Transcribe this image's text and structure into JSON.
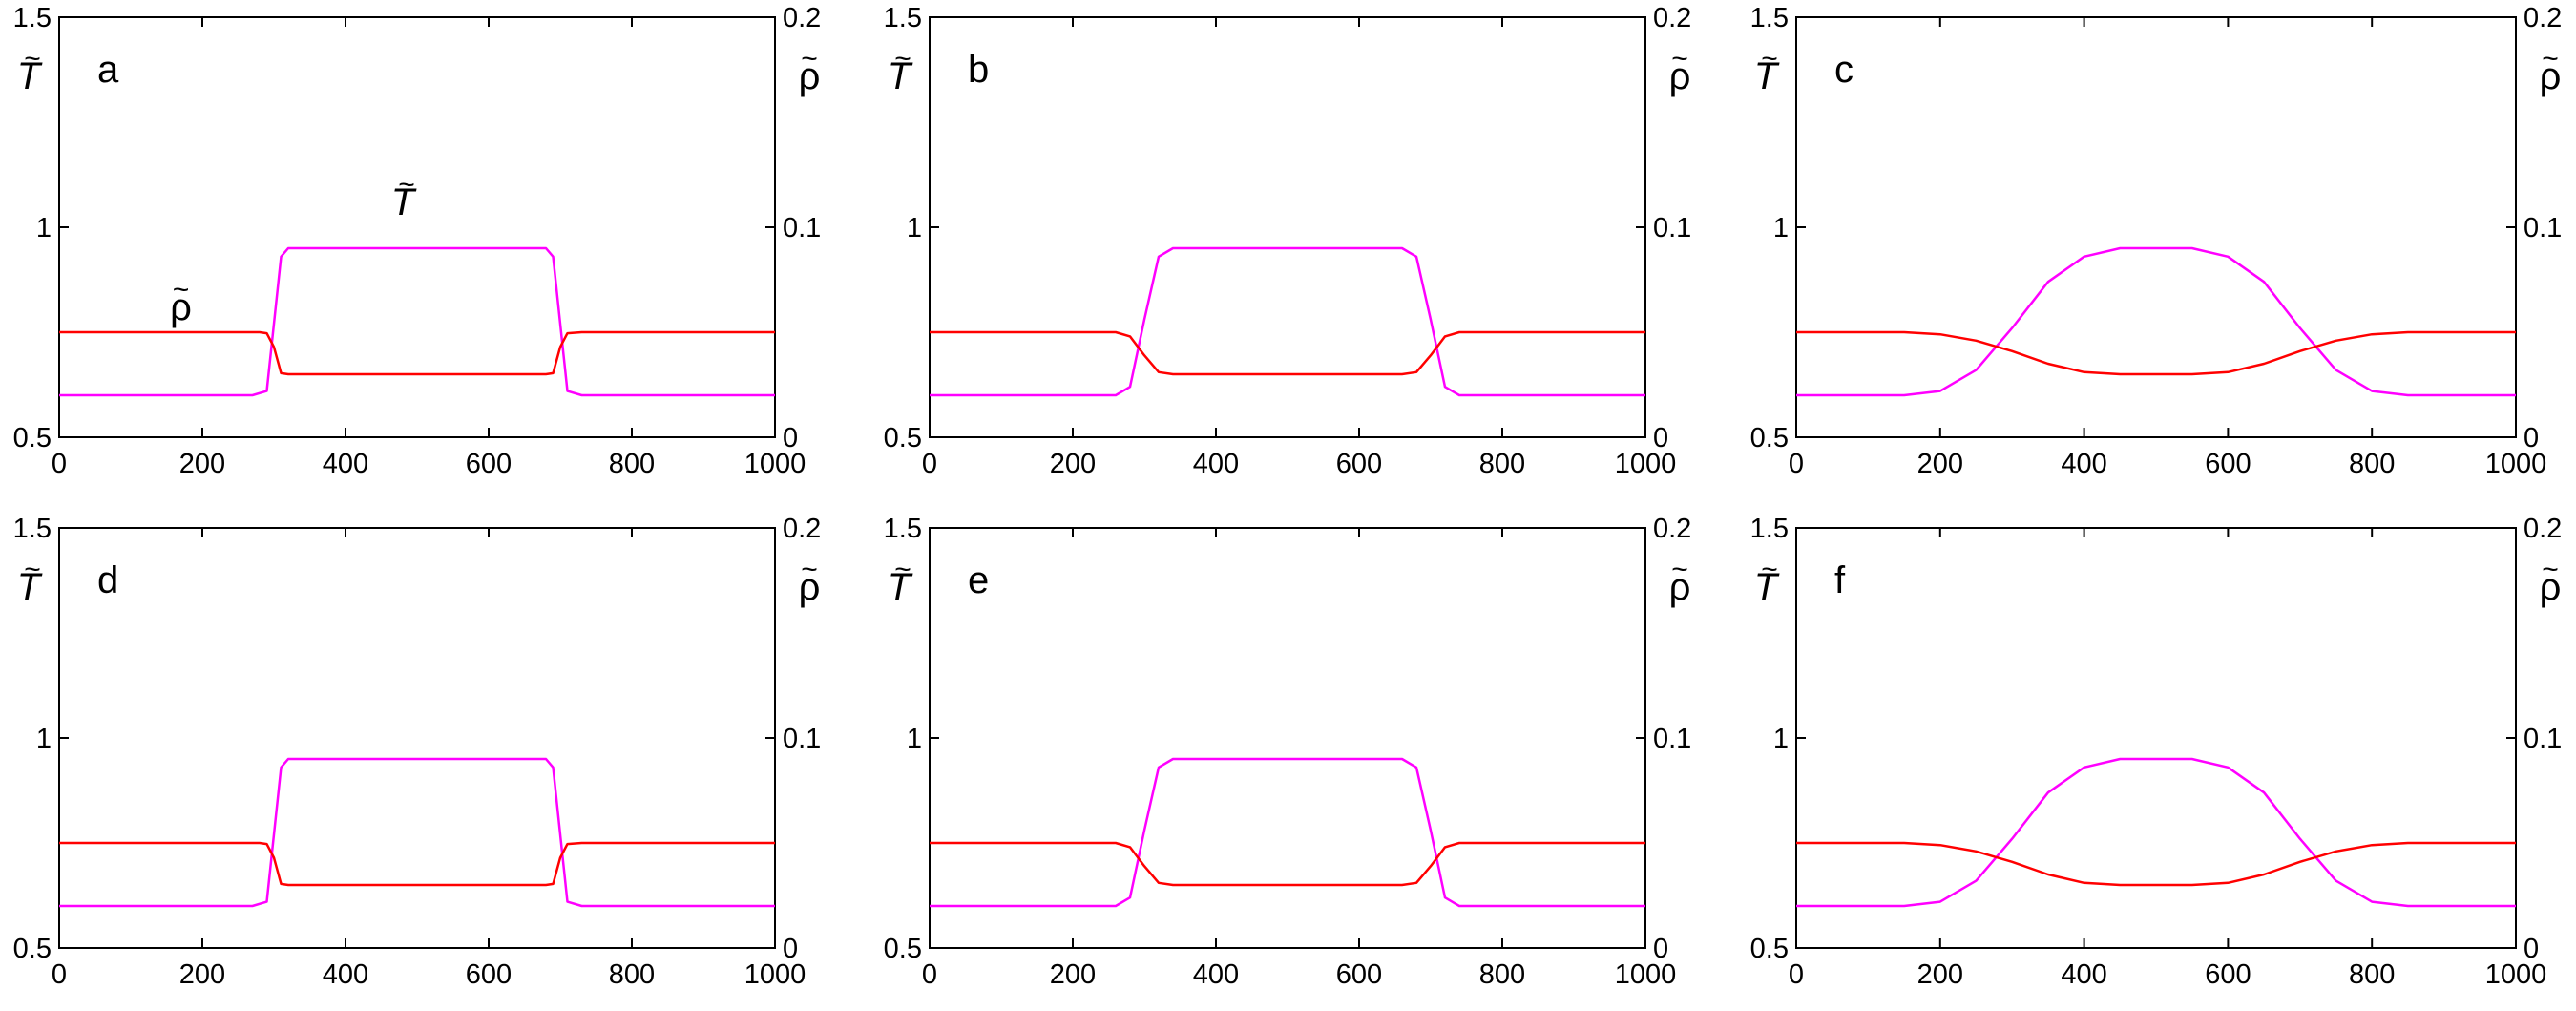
{
  "figure": {
    "colors": {
      "T": "#ff00ff",
      "rho": "#ff0000",
      "axes": "#000000"
    },
    "axes_labels": {
      "left_symbol": "T",
      "right_symbol": "ρ",
      "tilde": "~"
    },
    "curve_labels": {
      "T": "T",
      "rho": "ρ"
    }
  },
  "chart_data": [
    {
      "type": "line",
      "panel": "a",
      "xlim": [
        0,
        1000
      ],
      "ylim_left": [
        0.5,
        1.5
      ],
      "ylim_right": [
        0,
        0.2
      ],
      "x_ticks": [
        "0",
        "200",
        "400",
        "600",
        "800",
        "1000"
      ],
      "y_ticks_left": [
        "0.5",
        "1",
        "1.5"
      ],
      "y_ticks_right": [
        "0",
        "0.1",
        "0.2"
      ],
      "grid": false,
      "curve_labels": true,
      "series": [
        {
          "name": "T",
          "axis": "left",
          "x": [
            0,
            270,
            290,
            300,
            310,
            320,
            680,
            690,
            700,
            710,
            730,
            1000
          ],
          "y": [
            0.6,
            0.6,
            0.61,
            0.77,
            0.93,
            0.95,
            0.95,
            0.93,
            0.77,
            0.61,
            0.6,
            0.6
          ]
        },
        {
          "name": "ρ",
          "axis": "right",
          "x": [
            0,
            280,
            290,
            300,
            310,
            320,
            680,
            690,
            700,
            710,
            730,
            1000
          ],
          "y": [
            0.05,
            0.05,
            0.0495,
            0.043,
            0.0305,
            0.03,
            0.03,
            0.0305,
            0.043,
            0.0495,
            0.05,
            0.05
          ]
        }
      ]
    },
    {
      "type": "line",
      "panel": "b",
      "xlim": [
        0,
        1000
      ],
      "ylim_left": [
        0.5,
        1.5
      ],
      "ylim_right": [
        0,
        0.2
      ],
      "x_ticks": [
        "0",
        "200",
        "400",
        "600",
        "800",
        "1000"
      ],
      "y_ticks_left": [
        "0.5",
        "1",
        "1.5"
      ],
      "y_ticks_right": [
        "0",
        "0.1",
        "0.2"
      ],
      "grid": false,
      "series": [
        {
          "name": "T",
          "axis": "left",
          "x": [
            0,
            260,
            280,
            300,
            320,
            340,
            660,
            680,
            700,
            720,
            740,
            1000
          ],
          "y": [
            0.6,
            0.6,
            0.62,
            0.78,
            0.93,
            0.95,
            0.95,
            0.93,
            0.78,
            0.62,
            0.6,
            0.6
          ]
        },
        {
          "name": "ρ",
          "axis": "right",
          "x": [
            0,
            260,
            280,
            300,
            320,
            340,
            660,
            680,
            700,
            720,
            740,
            1000
          ],
          "y": [
            0.05,
            0.05,
            0.048,
            0.039,
            0.031,
            0.03,
            0.03,
            0.031,
            0.039,
            0.048,
            0.05,
            0.05
          ]
        }
      ]
    },
    {
      "type": "line",
      "panel": "c",
      "xlim": [
        0,
        1000
      ],
      "ylim_left": [
        0.5,
        1.5
      ],
      "ylim_right": [
        0,
        0.2
      ],
      "x_ticks": [
        "0",
        "200",
        "400",
        "600",
        "800",
        "1000"
      ],
      "y_ticks_left": [
        "0.5",
        "1",
        "1.5"
      ],
      "y_ticks_right": [
        "0",
        "0.1",
        "0.2"
      ],
      "grid": false,
      "series": [
        {
          "name": "T",
          "axis": "left",
          "x": [
            0,
            150,
            200,
            250,
            300,
            350,
            400,
            450,
            550,
            600,
            650,
            700,
            750,
            800,
            850,
            1000
          ],
          "y": [
            0.6,
            0.6,
            0.61,
            0.66,
            0.76,
            0.87,
            0.93,
            0.95,
            0.95,
            0.93,
            0.87,
            0.76,
            0.66,
            0.61,
            0.6,
            0.6
          ]
        },
        {
          "name": "ρ",
          "axis": "right",
          "x": [
            0,
            150,
            200,
            250,
            300,
            350,
            400,
            450,
            550,
            600,
            650,
            700,
            750,
            800,
            850,
            1000
          ],
          "y": [
            0.05,
            0.05,
            0.049,
            0.046,
            0.041,
            0.035,
            0.031,
            0.03,
            0.03,
            0.031,
            0.035,
            0.041,
            0.046,
            0.049,
            0.05,
            0.05
          ]
        }
      ]
    },
    {
      "type": "line",
      "panel": "d",
      "xlim": [
        0,
        1000
      ],
      "ylim_left": [
        0.5,
        1.5
      ],
      "ylim_right": [
        0,
        0.2
      ],
      "x_ticks": [
        "0",
        "200",
        "400",
        "600",
        "800",
        "1000"
      ],
      "y_ticks_left": [
        "0.5",
        "1",
        "1.5"
      ],
      "y_ticks_right": [
        "0",
        "0.1",
        "0.2"
      ],
      "grid": false,
      "series": [
        {
          "name": "T",
          "axis": "left",
          "x": [
            0,
            270,
            290,
            300,
            310,
            320,
            680,
            690,
            700,
            710,
            730,
            1000
          ],
          "y": [
            0.6,
            0.6,
            0.61,
            0.77,
            0.93,
            0.95,
            0.95,
            0.93,
            0.77,
            0.61,
            0.6,
            0.6
          ]
        },
        {
          "name": "ρ",
          "axis": "right",
          "x": [
            0,
            280,
            290,
            300,
            310,
            320,
            680,
            690,
            700,
            710,
            730,
            1000
          ],
          "y": [
            0.05,
            0.05,
            0.0495,
            0.043,
            0.0305,
            0.03,
            0.03,
            0.0305,
            0.043,
            0.0495,
            0.05,
            0.05
          ]
        }
      ]
    },
    {
      "type": "line",
      "panel": "e",
      "xlim": [
        0,
        1000
      ],
      "ylim_left": [
        0.5,
        1.5
      ],
      "ylim_right": [
        0,
        0.2
      ],
      "x_ticks": [
        "0",
        "200",
        "400",
        "600",
        "800",
        "1000"
      ],
      "y_ticks_left": [
        "0.5",
        "1",
        "1.5"
      ],
      "y_ticks_right": [
        "0",
        "0.1",
        "0.2"
      ],
      "grid": false,
      "series": [
        {
          "name": "T",
          "axis": "left",
          "x": [
            0,
            260,
            280,
            300,
            320,
            340,
            660,
            680,
            700,
            720,
            740,
            1000
          ],
          "y": [
            0.6,
            0.6,
            0.62,
            0.78,
            0.93,
            0.95,
            0.95,
            0.93,
            0.78,
            0.62,
            0.6,
            0.6
          ]
        },
        {
          "name": "ρ",
          "axis": "right",
          "x": [
            0,
            260,
            280,
            300,
            320,
            340,
            660,
            680,
            700,
            720,
            740,
            1000
          ],
          "y": [
            0.05,
            0.05,
            0.048,
            0.039,
            0.031,
            0.03,
            0.03,
            0.031,
            0.039,
            0.048,
            0.05,
            0.05
          ]
        }
      ]
    },
    {
      "type": "line",
      "panel": "f",
      "xlim": [
        0,
        1000
      ],
      "ylim_left": [
        0.5,
        1.5
      ],
      "ylim_right": [
        0,
        0.2
      ],
      "x_ticks": [
        "0",
        "200",
        "400",
        "600",
        "800",
        "1000"
      ],
      "y_ticks_left": [
        "0.5",
        "1",
        "1.5"
      ],
      "y_ticks_right": [
        "0",
        "0.1",
        "0.2"
      ],
      "grid": false,
      "series": [
        {
          "name": "T",
          "axis": "left",
          "x": [
            0,
            150,
            200,
            250,
            300,
            350,
            400,
            450,
            550,
            600,
            650,
            700,
            750,
            800,
            850,
            1000
          ],
          "y": [
            0.6,
            0.6,
            0.61,
            0.66,
            0.76,
            0.87,
            0.93,
            0.95,
            0.95,
            0.93,
            0.87,
            0.76,
            0.66,
            0.61,
            0.6,
            0.6
          ]
        },
        {
          "name": "ρ",
          "axis": "right",
          "x": [
            0,
            150,
            200,
            250,
            300,
            350,
            400,
            450,
            550,
            600,
            650,
            700,
            750,
            800,
            850,
            1000
          ],
          "y": [
            0.05,
            0.05,
            0.049,
            0.046,
            0.041,
            0.035,
            0.031,
            0.03,
            0.03,
            0.031,
            0.035,
            0.041,
            0.046,
            0.049,
            0.05,
            0.05
          ]
        }
      ]
    }
  ]
}
